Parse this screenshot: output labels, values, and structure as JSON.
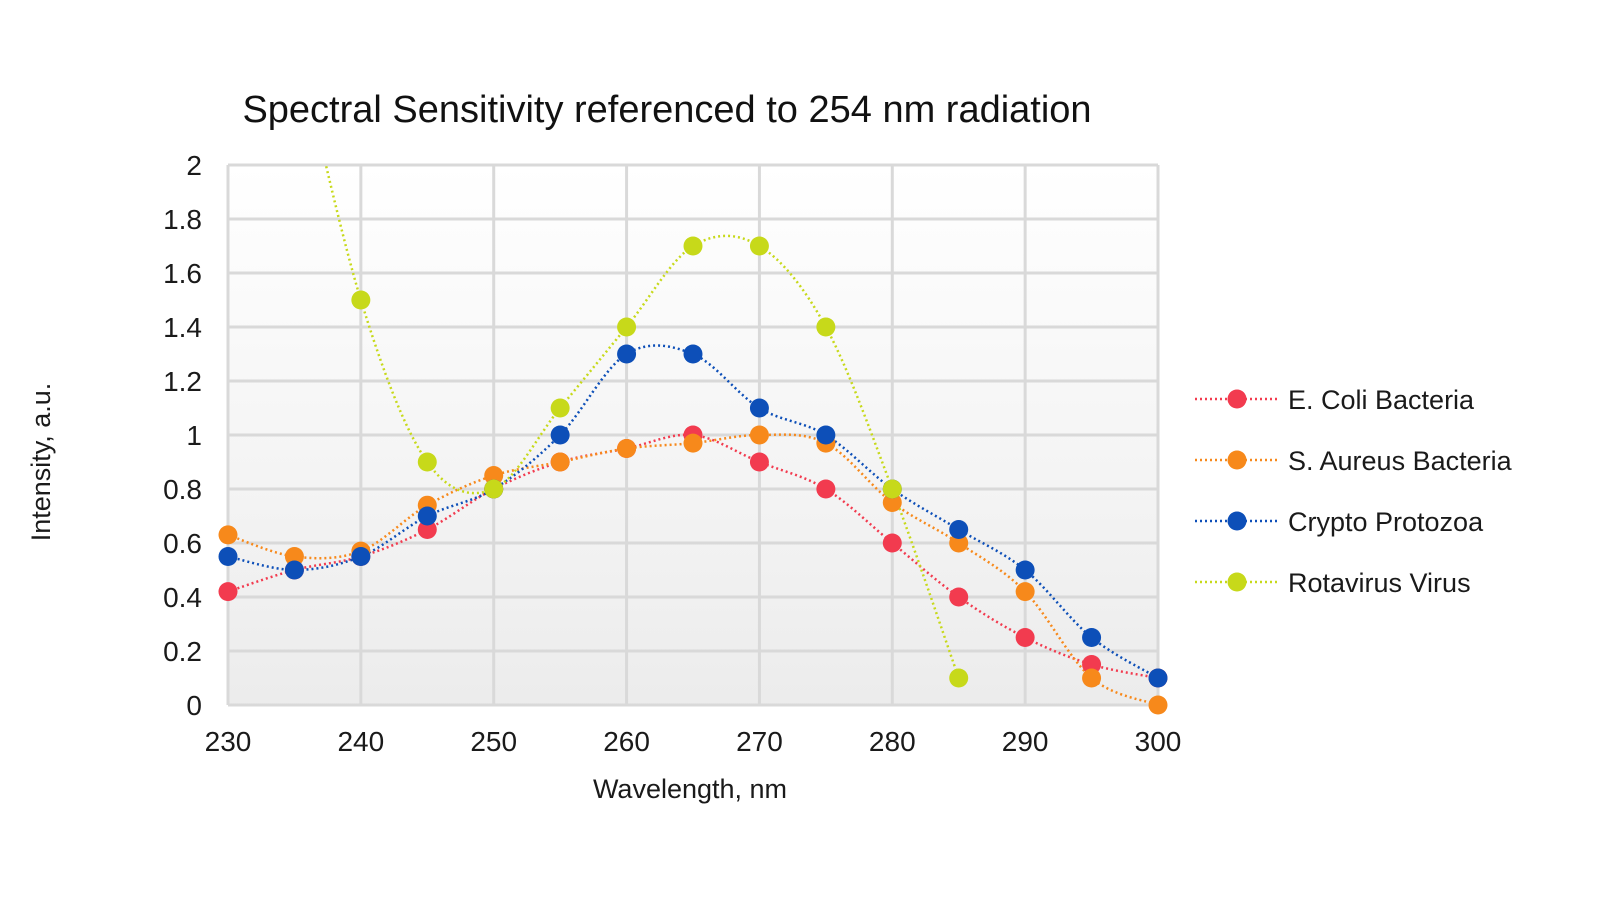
{
  "chart_data": {
    "type": "line",
    "title": "Spectral Sensitivity referenced to 254 nm radiation",
    "xlabel": "Wavelength, nm",
    "ylabel": "Intensity, a.u.",
    "xlim": [
      230,
      300
    ],
    "ylim": [
      0,
      2
    ],
    "x_ticks": [
      230,
      240,
      250,
      260,
      270,
      280,
      290,
      300
    ],
    "y_ticks": [
      "0",
      "0.2",
      "0.4",
      "0.6",
      "0.8",
      "1",
      "1.2",
      "1.4",
      "1.6",
      "1.8",
      "2"
    ],
    "grid": true,
    "legend_position": "right",
    "series": [
      {
        "name": "E. Coli Bacteria",
        "color": "#f23b4f",
        "points": [
          [
            230,
            0.42
          ],
          [
            235,
            0.5
          ],
          [
            240,
            0.55
          ],
          [
            245,
            0.65
          ],
          [
            250,
            0.8
          ],
          [
            255,
            0.9
          ],
          [
            260,
            0.95
          ],
          [
            265,
            1.0
          ],
          [
            270,
            0.9
          ],
          [
            275,
            0.8
          ],
          [
            280,
            0.6
          ],
          [
            285,
            0.4
          ],
          [
            290,
            0.25
          ],
          [
            295,
            0.15
          ],
          [
            300,
            0.1
          ]
        ]
      },
      {
        "name": "S. Aureus Bacteria",
        "color": "#f7891b",
        "points": [
          [
            230,
            0.63
          ],
          [
            235,
            0.55
          ],
          [
            240,
            0.57
          ],
          [
            245,
            0.74
          ],
          [
            250,
            0.85
          ],
          [
            255,
            0.9
          ],
          [
            260,
            0.95
          ],
          [
            265,
            0.97
          ],
          [
            270,
            1.0
          ],
          [
            275,
            0.97
          ],
          [
            280,
            0.75
          ],
          [
            285,
            0.6
          ],
          [
            290,
            0.42
          ],
          [
            295,
            0.1
          ],
          [
            300,
            0.0
          ]
        ]
      },
      {
        "name": "Crypto Protozoa",
        "color": "#0d4fb8",
        "points": [
          [
            230,
            0.55
          ],
          [
            235,
            0.5
          ],
          [
            240,
            0.55
          ],
          [
            245,
            0.7
          ],
          [
            250,
            0.8
          ],
          [
            255,
            1.0
          ],
          [
            260,
            1.3
          ],
          [
            265,
            1.3
          ],
          [
            270,
            1.1
          ],
          [
            275,
            1.0
          ],
          [
            280,
            0.8
          ],
          [
            285,
            0.65
          ],
          [
            290,
            0.5
          ],
          [
            295,
            0.25
          ],
          [
            300,
            0.1
          ]
        ]
      },
      {
        "name": "Rotavirus Virus",
        "color": "#c7d91a",
        "points": [
          [
            235,
            2.5
          ],
          [
            240,
            1.5
          ],
          [
            245,
            0.9
          ],
          [
            250,
            0.8
          ],
          [
            255,
            1.1
          ],
          [
            260,
            1.4
          ],
          [
            265,
            1.7
          ],
          [
            270,
            1.7
          ],
          [
            275,
            1.4
          ],
          [
            280,
            0.8
          ],
          [
            285,
            0.1
          ]
        ],
        "hidden_first_point": true
      }
    ]
  }
}
